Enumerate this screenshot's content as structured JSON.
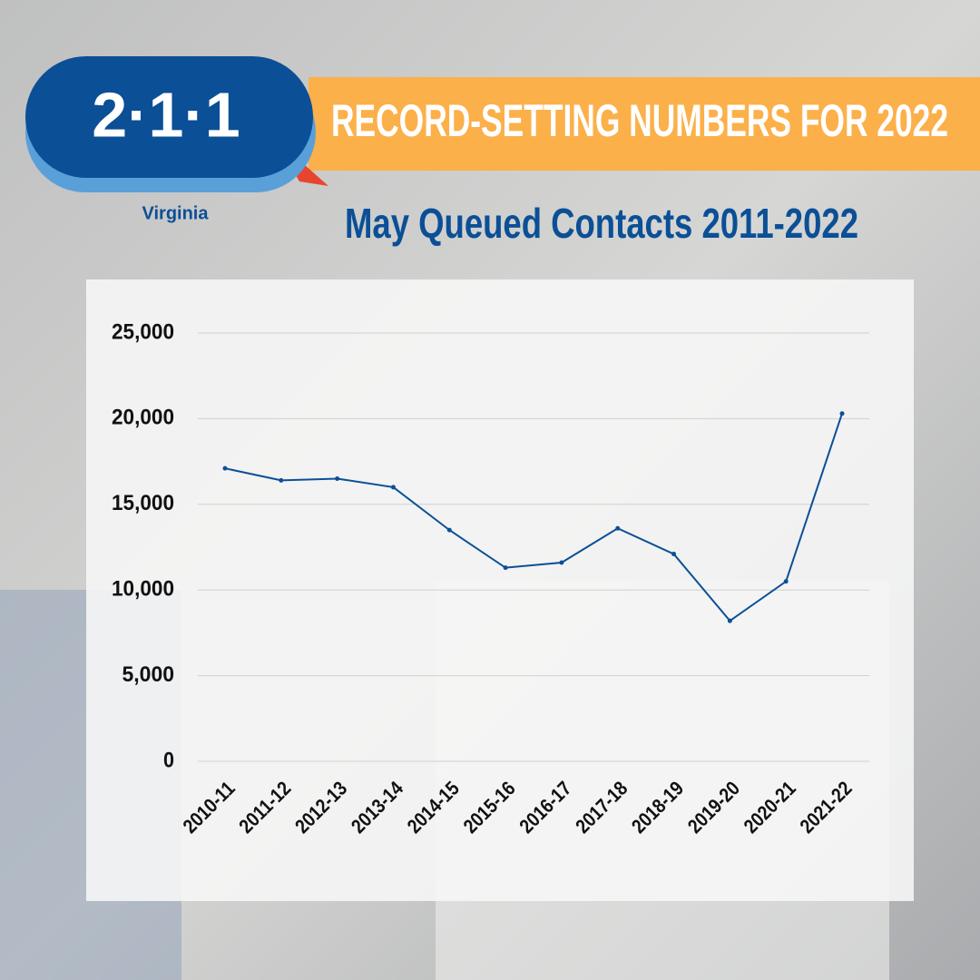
{
  "logo": {
    "text": "2·1·1",
    "subtitle": "Virginia"
  },
  "banner": "RECORD-SETTING NUMBERS FOR 2022",
  "chart_data": {
    "type": "line",
    "title": "May Queued Contacts 2011-2022",
    "categories": [
      "2010-11",
      "2011-12",
      "2012-13",
      "2013-14",
      "2014-15",
      "2015-16",
      "2016-17",
      "2017-18",
      "2018-19",
      "2019-20",
      "2020-21",
      "2021-22"
    ],
    "series": [
      {
        "name": "May Queued Contacts",
        "color": "#0b4f96",
        "values": [
          17100,
          16400,
          16500,
          16000,
          13500,
          11300,
          11600,
          13600,
          12100,
          8200,
          10500,
          20300
        ]
      }
    ],
    "ylim": [
      0,
      25000
    ],
    "yticks": [
      0,
      {
        "value": 5000,
        "label": "5,000"
      },
      {
        "value": 10000,
        "label": "10,000"
      },
      {
        "value": 15000,
        "label": "15,000"
      },
      {
        "value": 20000,
        "label": "20,000"
      },
      {
        "value": 25000,
        "label": "25,000"
      }
    ],
    "grid": true
  }
}
